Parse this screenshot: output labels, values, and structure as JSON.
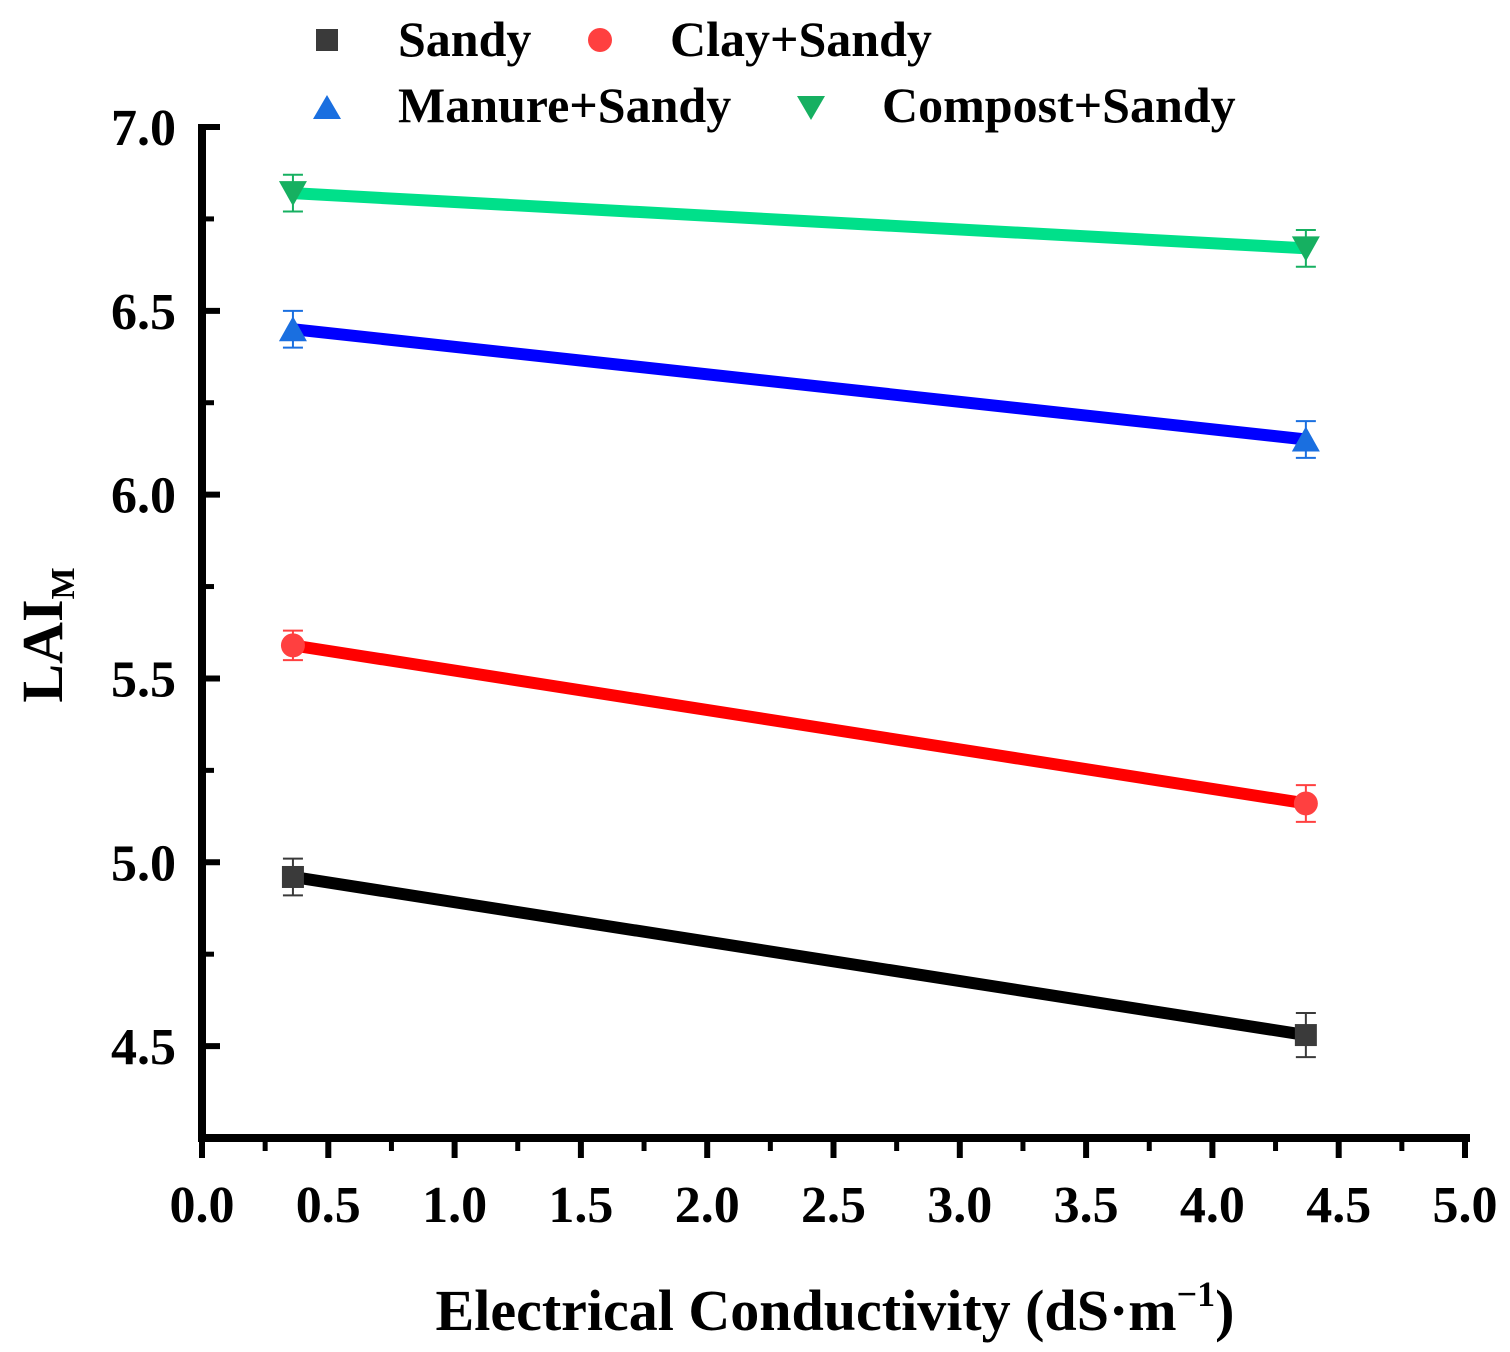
{
  "chart_data": {
    "type": "line",
    "title": "",
    "xlabel": "Electrical Conductivity (dS·m",
    "xlabel_sup": "−1",
    "xlabel_close": ")",
    "ylabel": "LAI",
    "ylabel_sub": "M",
    "xlim": [
      0.0,
      5.0
    ],
    "ylim": [
      4.25,
      7.0
    ],
    "xticks": [
      "0.0",
      "0.5",
      "1.0",
      "1.5",
      "2.0",
      "2.5",
      "3.0",
      "3.5",
      "4.0",
      "4.5",
      "5.0"
    ],
    "yticks": [
      "4.5",
      "5.0",
      "5.5",
      "6.0",
      "6.5",
      "7.0"
    ],
    "x": [
      0.36,
      4.37
    ],
    "series": [
      {
        "name": "Sandy",
        "marker": "square",
        "color": "#000000",
        "marker_color": "#3a3a3a",
        "values": [
          4.96,
          4.53
        ],
        "errors": [
          0.05,
          0.06
        ]
      },
      {
        "name": "Clay+Sandy",
        "marker": "circle",
        "color": "#ff0000",
        "marker_color": "#ff4040",
        "values": [
          5.59,
          5.16
        ],
        "errors": [
          0.04,
          0.05
        ]
      },
      {
        "name": "Manure+Sandy",
        "marker": "triangle-up",
        "color": "#0000ff",
        "marker_color": "#1a6fe0",
        "values": [
          6.45,
          6.15
        ],
        "errors": [
          0.05,
          0.05
        ]
      },
      {
        "name": "Compost+Sandy",
        "marker": "triangle-down",
        "color": "#00e08a",
        "marker_color": "#16b061",
        "values": [
          6.82,
          6.67
        ],
        "errors": [
          0.05,
          0.05
        ]
      }
    ],
    "legend": "top"
  }
}
